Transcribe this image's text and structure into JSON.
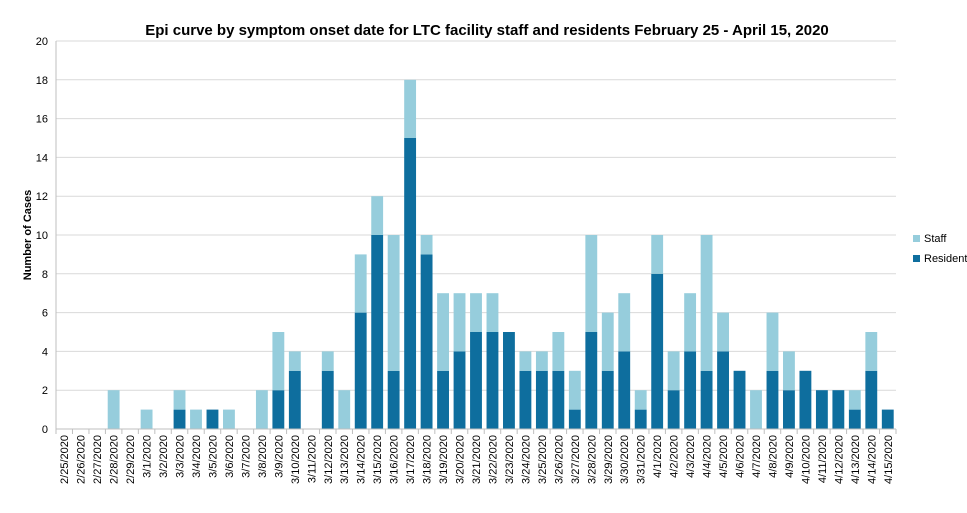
{
  "chart_data": {
    "type": "bar",
    "stacked": true,
    "title": "Epi curve by symptom onset date for LTC facility staff and residents February 25 - April 15, 2020",
    "xlabel": "",
    "ylabel": "Number of Cases",
    "ylim": [
      0,
      20
    ],
    "yticks": [
      0,
      2,
      4,
      6,
      8,
      10,
      12,
      14,
      16,
      18,
      20
    ],
    "grid": true,
    "legend_position": "right",
    "categories": [
      "2/25/2020",
      "2/26/2020",
      "2/27/2020",
      "2/28/2020",
      "2/29/2020",
      "3/1/2020",
      "3/2/2020",
      "3/3/2020",
      "3/4/2020",
      "3/5/2020",
      "3/6/2020",
      "3/7/2020",
      "3/8/2020",
      "3/9/2020",
      "3/10/2020",
      "3/11/2020",
      "3/12/2020",
      "3/13/2020",
      "3/14/2020",
      "3/15/2020",
      "3/16/2020",
      "3/17/2020",
      "3/18/2020",
      "3/19/2020",
      "3/20/2020",
      "3/21/2020",
      "3/22/2020",
      "3/23/2020",
      "3/24/2020",
      "3/25/2020",
      "3/26/2020",
      "3/27/2020",
      "3/28/2020",
      "3/29/2020",
      "3/30/2020",
      "3/31/2020",
      "4/1/2020",
      "4/2/2020",
      "4/3/2020",
      "4/4/2020",
      "4/5/2020",
      "4/6/2020",
      "4/7/2020",
      "4/8/2020",
      "4/9/2020",
      "4/10/2020",
      "4/11/2020",
      "4/12/2020",
      "4/13/2020",
      "4/14/2020",
      "4/15/2020"
    ],
    "series": [
      {
        "name": "Resident",
        "color": "#0e6e9e",
        "values": [
          0,
          0,
          0,
          0,
          0,
          0,
          0,
          1,
          0,
          1,
          0,
          0,
          0,
          2,
          3,
          0,
          3,
          0,
          6,
          10,
          3,
          15,
          9,
          3,
          4,
          5,
          5,
          5,
          3,
          3,
          3,
          1,
          5,
          3,
          4,
          1,
          8,
          2,
          4,
          3,
          4,
          3,
          0,
          3,
          2,
          3,
          2,
          2,
          1,
          3,
          1
        ]
      },
      {
        "name": "Staff",
        "color": "#96cddc",
        "values": [
          0,
          0,
          0,
          2,
          0,
          1,
          0,
          1,
          1,
          0,
          1,
          0,
          2,
          3,
          1,
          0,
          1,
          2,
          3,
          2,
          7,
          3,
          1,
          4,
          3,
          2,
          2,
          0,
          1,
          1,
          2,
          2,
          5,
          3,
          3,
          1,
          2,
          2,
          3,
          7,
          2,
          0,
          2,
          3,
          2,
          0,
          0,
          0,
          1,
          2,
          0
        ]
      }
    ],
    "legend": [
      "Staff",
      "Resident"
    ]
  }
}
